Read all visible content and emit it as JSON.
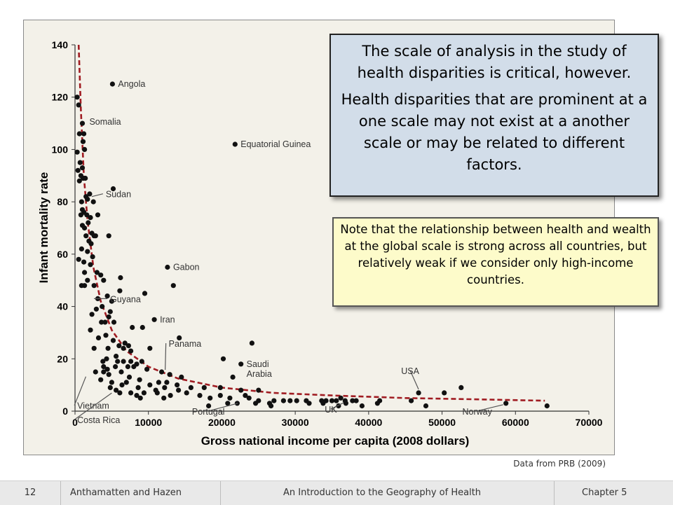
{
  "chart_data": {
    "type": "scatter",
    "title": "",
    "xlabel": "Gross national income per capita (2008 dollars)",
    "ylabel": "Infant mortality rate",
    "xlim": [
      0,
      70000
    ],
    "ylim": [
      0,
      140
    ],
    "x_ticks": [
      0,
      10000,
      20000,
      30000,
      40000,
      50000,
      60000,
      70000
    ],
    "x_tick_labels": [
      "0",
      "10000",
      "20000",
      "30000",
      "40000",
      "50000",
      "60000",
      "70000"
    ],
    "y_ticks": [
      0,
      20,
      40,
      60,
      80,
      100,
      120,
      140
    ],
    "y_tick_labels": [
      "0",
      "20",
      "40",
      "60",
      "80",
      "100",
      "120",
      "140"
    ],
    "grid": false,
    "point_color": "#111111",
    "curve_color": "#a01c22",
    "trend_curve": {
      "style": "dashed",
      "x": [
        500,
        800,
        1200,
        1700,
        2500,
        3500,
        5000,
        7000,
        10000,
        14000,
        20000,
        27000,
        35000,
        45000,
        55000,
        64000
      ],
      "y": [
        140,
        115,
        90,
        73,
        55,
        42,
        31,
        23,
        17,
        12.5,
        9,
        7,
        6,
        5,
        4.5,
        4
      ]
    },
    "points": [
      {
        "x": 300,
        "y": 120
      },
      {
        "x": 500,
        "y": 117
      },
      {
        "x": 1000,
        "y": 110
      },
      {
        "x": 600,
        "y": 106
      },
      {
        "x": 1200,
        "y": 106
      },
      {
        "x": 1100,
        "y": 103
      },
      {
        "x": 300,
        "y": 99
      },
      {
        "x": 1300,
        "y": 100
      },
      {
        "x": 700,
        "y": 95
      },
      {
        "x": 1000,
        "y": 93
      },
      {
        "x": 400,
        "y": 92
      },
      {
        "x": 800,
        "y": 90
      },
      {
        "x": 1400,
        "y": 89
      },
      {
        "x": 1100,
        "y": 89
      },
      {
        "x": 600,
        "y": 88
      },
      {
        "x": 2000,
        "y": 83
      },
      {
        "x": 1500,
        "y": 82
      },
      {
        "x": 1700,
        "y": 81
      },
      {
        "x": 900,
        "y": 80
      },
      {
        "x": 2500,
        "y": 80
      },
      {
        "x": 1000,
        "y": 77
      },
      {
        "x": 1200,
        "y": 76
      },
      {
        "x": 800,
        "y": 75
      },
      {
        "x": 1600,
        "y": 75
      },
      {
        "x": 2100,
        "y": 74
      },
      {
        "x": 3100,
        "y": 75
      },
      {
        "x": 1800,
        "y": 72
      },
      {
        "x": 1000,
        "y": 71
      },
      {
        "x": 1300,
        "y": 70
      },
      {
        "x": 2300,
        "y": 68
      },
      {
        "x": 1500,
        "y": 67
      },
      {
        "x": 2600,
        "y": 67
      },
      {
        "x": 2800,
        "y": 67
      },
      {
        "x": 4600,
        "y": 67
      },
      {
        "x": 1900,
        "y": 65
      },
      {
        "x": 2200,
        "y": 64
      },
      {
        "x": 900,
        "y": 62
      },
      {
        "x": 1700,
        "y": 61
      },
      {
        "x": 2400,
        "y": 59
      },
      {
        "x": 500,
        "y": 58
      },
      {
        "x": 1200,
        "y": 57
      },
      {
        "x": 2100,
        "y": 56
      },
      {
        "x": 1300,
        "y": 53
      },
      {
        "x": 3000,
        "y": 53
      },
      {
        "x": 3500,
        "y": 52
      },
      {
        "x": 6200,
        "y": 51
      },
      {
        "x": 1700,
        "y": 50
      },
      {
        "x": 3900,
        "y": 50
      },
      {
        "x": 1300,
        "y": 48
      },
      {
        "x": 900,
        "y": 48
      },
      {
        "x": 2600,
        "y": 48
      },
      {
        "x": 6100,
        "y": 46
      },
      {
        "x": 9500,
        "y": 45
      },
      {
        "x": 4400,
        "y": 44
      },
      {
        "x": 3100,
        "y": 43
      },
      {
        "x": 5000,
        "y": 42
      },
      {
        "x": 3700,
        "y": 40
      },
      {
        "x": 2900,
        "y": 39
      },
      {
        "x": 4800,
        "y": 38
      },
      {
        "x": 2300,
        "y": 37
      },
      {
        "x": 4600,
        "y": 36
      },
      {
        "x": 4100,
        "y": 34
      },
      {
        "x": 3600,
        "y": 34
      },
      {
        "x": 5300,
        "y": 34
      },
      {
        "x": 7800,
        "y": 32
      },
      {
        "x": 2100,
        "y": 31
      },
      {
        "x": 9200,
        "y": 32
      },
      {
        "x": 4200,
        "y": 29
      },
      {
        "x": 3200,
        "y": 28
      },
      {
        "x": 5200,
        "y": 27
      },
      {
        "x": 6800,
        "y": 26
      },
      {
        "x": 7300,
        "y": 25
      },
      {
        "x": 6000,
        "y": 25
      },
      {
        "x": 4500,
        "y": 24
      },
      {
        "x": 2600,
        "y": 24
      },
      {
        "x": 6600,
        "y": 24
      },
      {
        "x": 10200,
        "y": 24
      },
      {
        "x": 7600,
        "y": 23
      },
      {
        "x": 5600,
        "y": 21
      },
      {
        "x": 4300,
        "y": 20
      },
      {
        "x": 3800,
        "y": 19
      },
      {
        "x": 5800,
        "y": 19
      },
      {
        "x": 6600,
        "y": 19
      },
      {
        "x": 7600,
        "y": 19
      },
      {
        "x": 8400,
        "y": 18
      },
      {
        "x": 9100,
        "y": 19
      },
      {
        "x": 5500,
        "y": 17
      },
      {
        "x": 3900,
        "y": 17
      },
      {
        "x": 4400,
        "y": 16
      },
      {
        "x": 7200,
        "y": 17
      },
      {
        "x": 8000,
        "y": 17
      },
      {
        "x": 9800,
        "y": 16
      },
      {
        "x": 2800,
        "y": 15
      },
      {
        "x": 3900,
        "y": 15
      },
      {
        "x": 6300,
        "y": 15
      },
      {
        "x": 11800,
        "y": 15
      },
      {
        "x": 12900,
        "y": 14
      },
      {
        "x": 14500,
        "y": 13
      },
      {
        "x": 4600,
        "y": 14
      },
      {
        "x": 7400,
        "y": 13
      },
      {
        "x": 8800,
        "y": 12
      },
      {
        "x": 3500,
        "y": 12
      },
      {
        "x": 5000,
        "y": 11
      },
      {
        "x": 7000,
        "y": 11
      },
      {
        "x": 12500,
        "y": 11
      },
      {
        "x": 11400,
        "y": 11
      },
      {
        "x": 13900,
        "y": 10
      },
      {
        "x": 10200,
        "y": 10
      },
      {
        "x": 6400,
        "y": 10
      },
      {
        "x": 4800,
        "y": 9
      },
      {
        "x": 8600,
        "y": 9
      },
      {
        "x": 12200,
        "y": 9
      },
      {
        "x": 15800,
        "y": 9
      },
      {
        "x": 17600,
        "y": 9
      },
      {
        "x": 19800,
        "y": 9
      },
      {
        "x": 5600,
        "y": 8
      },
      {
        "x": 11000,
        "y": 8
      },
      {
        "x": 14100,
        "y": 8
      },
      {
        "x": 6100,
        "y": 7
      },
      {
        "x": 7600,
        "y": 7
      },
      {
        "x": 9400,
        "y": 7
      },
      {
        "x": 11200,
        "y": 7
      },
      {
        "x": 15200,
        "y": 7
      },
      {
        "x": 22600,
        "y": 8
      },
      {
        "x": 25000,
        "y": 8
      },
      {
        "x": 8400,
        "y": 6
      },
      {
        "x": 13000,
        "y": 6
      },
      {
        "x": 17000,
        "y": 6
      },
      {
        "x": 19800,
        "y": 6
      },
      {
        "x": 23200,
        "y": 6
      },
      {
        "x": 8900,
        "y": 5
      },
      {
        "x": 12100,
        "y": 5
      },
      {
        "x": 18400,
        "y": 5
      },
      {
        "x": 21100,
        "y": 5
      },
      {
        "x": 23700,
        "y": 5
      },
      {
        "x": 25000,
        "y": 4
      },
      {
        "x": 27100,
        "y": 4
      },
      {
        "x": 29300,
        "y": 4
      },
      {
        "x": 31500,
        "y": 4
      },
      {
        "x": 33600,
        "y": 4
      },
      {
        "x": 35000,
        "y": 4
      },
      {
        "x": 36800,
        "y": 4
      },
      {
        "x": 37800,
        "y": 4
      },
      {
        "x": 41500,
        "y": 4
      },
      {
        "x": 45800,
        "y": 4
      },
      {
        "x": 22100,
        "y": 3
      },
      {
        "x": 24600,
        "y": 3
      },
      {
        "x": 26500,
        "y": 3
      },
      {
        "x": 28400,
        "y": 4
      },
      {
        "x": 30200,
        "y": 4
      },
      {
        "x": 34200,
        "y": 4
      },
      {
        "x": 35600,
        "y": 4
      },
      {
        "x": 36200,
        "y": 5
      },
      {
        "x": 38300,
        "y": 4
      },
      {
        "x": 20800,
        "y": 3
      },
      {
        "x": 33800,
        "y": 3
      },
      {
        "x": 36900,
        "y": 3
      },
      {
        "x": 39100,
        "y": 2
      },
      {
        "x": 41200,
        "y": 3
      },
      {
        "x": 47800,
        "y": 2
      },
      {
        "x": 18200,
        "y": 2
      },
      {
        "x": 26700,
        "y": 2
      },
      {
        "x": 31900,
        "y": 3
      },
      {
        "x": 35900,
        "y": 2
      },
      {
        "x": 58700,
        "y": 3
      },
      {
        "x": 64300,
        "y": 2
      },
      {
        "x": 21500,
        "y": 13
      },
      {
        "x": 20200,
        "y": 20
      },
      {
        "x": 24100,
        "y": 26
      },
      {
        "x": 22600,
        "y": 18
      },
      {
        "x": 14200,
        "y": 28
      },
      {
        "x": 10800,
        "y": 35
      },
      {
        "x": 12600,
        "y": 55
      },
      {
        "x": 13400,
        "y": 48
      },
      {
        "x": 5200,
        "y": 85
      },
      {
        "x": 5100,
        "y": 125
      },
      {
        "x": 21800,
        "y": 102
      },
      {
        "x": 46800,
        "y": 7
      },
      {
        "x": 50300,
        "y": 7
      },
      {
        "x": 52600,
        "y": 9
      }
    ],
    "annotations": [
      {
        "text": "Angola",
        "x": 5100,
        "y": 125
      },
      {
        "text": "Somalia",
        "x": 1000,
        "y": 110
      },
      {
        "text": "Equatorial Guinea",
        "x": 21800,
        "y": 102
      },
      {
        "text": "Sudan",
        "x": 1900,
        "y": 82
      },
      {
        "text": "Gabon",
        "x": 12600,
        "y": 55
      },
      {
        "text": "Guyana",
        "x": 2200,
        "y": 43
      },
      {
        "text": "Iran",
        "x": 10800,
        "y": 35
      },
      {
        "text": "Panama",
        "x": 12000,
        "y": 15
      },
      {
        "text": "Saudi Arabia",
        "x": 22600,
        "y": 18
      },
      {
        "text": "USA",
        "x": 46800,
        "y": 7
      },
      {
        "text": "Vietnam",
        "x": 1000,
        "y": 14
      },
      {
        "text": "Costa Rica",
        "x": 5000,
        "y": 8
      },
      {
        "text": "Portugal",
        "x": 19500,
        "y": 3
      },
      {
        "text": "UK",
        "x": 36000,
        "y": 4
      },
      {
        "text": "Norway",
        "x": 58700,
        "y": 3
      }
    ]
  },
  "callouts": {
    "main_p1": "The scale of analysis in the study of health disparities is critical, however.",
    "main_p2": "Health disparities that are prominent at a one scale may not exist at a another scale or may be related to different factors.",
    "note": "Note that the relationship between health and wealth at the global scale is strong across all countries, but relatively weak if we consider only high-income countries."
  },
  "source": "Data from PRB (2009)",
  "footer": {
    "slide_number": "12",
    "authors": "Anthamatten and Hazen",
    "book": "An Introduction to the Geography of Health",
    "chapter": "Chapter 5"
  }
}
